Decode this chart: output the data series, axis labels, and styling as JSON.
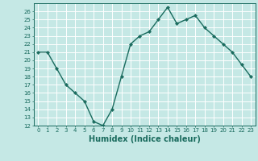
{
  "x": [
    0,
    1,
    2,
    3,
    4,
    5,
    6,
    7,
    8,
    9,
    10,
    11,
    12,
    13,
    14,
    15,
    16,
    17,
    18,
    19,
    20,
    21,
    22,
    23
  ],
  "y": [
    21,
    21,
    19,
    17,
    16,
    15,
    12.5,
    12,
    14,
    18,
    22,
    23,
    23.5,
    25,
    26.5,
    24.5,
    25,
    25.5,
    24,
    23,
    22,
    21,
    19.5,
    18
  ],
  "line_color": "#1a6b5e",
  "marker": "D",
  "markersize": 2.2,
  "linewidth": 1.0,
  "bg_color": "#c5e8e5",
  "grid_color": "#ffffff",
  "tick_color": "#1a6b5e",
  "xlabel": "Humidex (Indice chaleur)",
  "xlabel_fontsize": 7,
  "xlabel_color": "#1a6b5e",
  "ylim": [
    12,
    27
  ],
  "yticks": [
    12,
    13,
    14,
    15,
    16,
    17,
    18,
    19,
    20,
    21,
    22,
    23,
    24,
    25,
    26
  ],
  "xticks": [
    0,
    1,
    2,
    3,
    4,
    5,
    6,
    7,
    8,
    9,
    10,
    11,
    12,
    13,
    14,
    15,
    16,
    17,
    18,
    19,
    20,
    21,
    22,
    23
  ],
  "xlim": [
    -0.5,
    23.5
  ]
}
